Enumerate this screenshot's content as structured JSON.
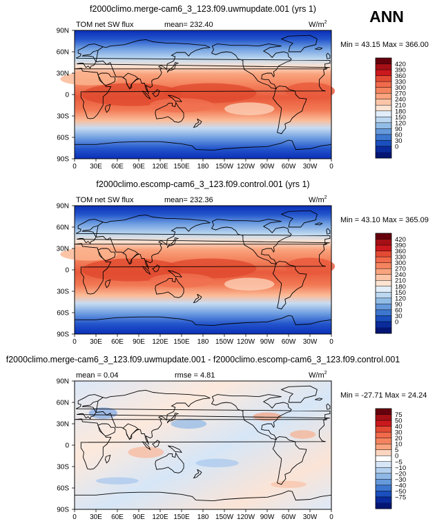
{
  "season": "ANN",
  "panels": [
    {
      "title": "f2000climo.merge-cam6_3_123.f09.uwmupdate.001 (yrs 1)",
      "left_label": "TOM  net  SW  flux",
      "stat1_label": "mean= ",
      "stat1_value": "232.40",
      "stat2_label": "",
      "stat2_value": "",
      "units": "W/m",
      "units_exp": "2",
      "minmax": "Min =  43.15 Max = 366.00",
      "palette": "full",
      "colorbar_labels": [
        "420",
        "390",
        "360",
        "330",
        "300",
        "270",
        "240",
        "210",
        "180",
        "150",
        "120",
        "90",
        "60",
        "30",
        "0"
      ],
      "colorbar_colors": [
        "#67000d",
        "#a50f15",
        "#cb181d",
        "#e34a33",
        "#f16a4b",
        "#f4845f",
        "#f9a47e",
        "#fcc5a8",
        "#fde3d2",
        "#e1edf9",
        "#bcd7f0",
        "#91bce6",
        "#6599db",
        "#3c76cf",
        "#1a4fbd",
        "#0a2b9b",
        "#041673"
      ],
      "tint": "#ffffff"
    },
    {
      "title": "f2000climo.escomp-cam6_3_123.f09.control.001 (yrs 1)",
      "left_label": "TOM  net  SW  flux",
      "stat1_label": "mean= ",
      "stat1_value": "232.36",
      "stat2_label": "",
      "stat2_value": "",
      "units": "W/m",
      "units_exp": "2",
      "minmax": "Min =  43.10 Max = 365.09",
      "palette": "full",
      "colorbar_labels": [
        "420",
        "390",
        "360",
        "330",
        "300",
        "270",
        "240",
        "210",
        "180",
        "150",
        "120",
        "90",
        "60",
        "30",
        "0"
      ],
      "colorbar_colors": [
        "#67000d",
        "#a50f15",
        "#cb181d",
        "#e34a33",
        "#f16a4b",
        "#f4845f",
        "#f9a47e",
        "#fcc5a8",
        "#fde3d2",
        "#e1edf9",
        "#bcd7f0",
        "#91bce6",
        "#6599db",
        "#3c76cf",
        "#1a4fbd",
        "#0a2b9b",
        "#041673"
      ],
      "tint": "#ffffff"
    },
    {
      "title": "f2000climo.merge-cam6_3_123.f09.uwmupdate.001 - f2000climo.escomp-cam6_3_123.f09.control.001",
      "left_label": "",
      "stat1_label": "mean = ",
      "stat1_value": "0.04",
      "stat2_label": "rmse = ",
      "stat2_value": "4.81",
      "units": "W/m",
      "units_exp": "2",
      "minmax": "Min = -27.71 Max =  24.24",
      "palette": "diff",
      "colorbar_labels": [
        "75",
        "50",
        "40",
        "30",
        "20",
        "10",
        "5",
        "0",
        "−5",
        "−10",
        "−20",
        "−30",
        "−40",
        "−50",
        "−75"
      ],
      "colorbar_colors": [
        "#67000d",
        "#a50f15",
        "#cb181d",
        "#e34a33",
        "#f16a4b",
        "#f4845f",
        "#f9a47e",
        "#fcd5c0",
        "#ffffff",
        "#d6e6f7",
        "#b5d0ef",
        "#8fb8e6",
        "#6599db",
        "#3c76cf",
        "#1a4fbd",
        "#0a2b9b",
        "#041673"
      ],
      "tint": "#eef5ff"
    }
  ],
  "chart_data": [
    {
      "type": "heatmap",
      "title": "f2000climo.merge-cam6_3_123.f09.uwmupdate.001 (yrs 1)",
      "variable": "TOM net SW flux",
      "units": "W/m2",
      "mean": 232.4,
      "min": 43.15,
      "max": 366.0,
      "x_ticks": [
        "0",
        "30E",
        "60E",
        "90E",
        "120E",
        "150E",
        "180",
        "150W",
        "120W",
        "90W",
        "60W",
        "30W",
        "0"
      ],
      "y_ticks": [
        "90N",
        "60N",
        "30N",
        "0",
        "30S",
        "60S",
        "90S"
      ],
      "levels": [
        0,
        30,
        60,
        90,
        120,
        150,
        180,
        210,
        240,
        270,
        300,
        330,
        360,
        390,
        420
      ]
    },
    {
      "type": "heatmap",
      "title": "f2000climo.escomp-cam6_3_123.f09.control.001 (yrs 1)",
      "variable": "TOM net SW flux",
      "units": "W/m2",
      "mean": 232.36,
      "min": 43.1,
      "max": 365.09,
      "x_ticks": [
        "0",
        "30E",
        "60E",
        "90E",
        "120E",
        "150E",
        "180",
        "150W",
        "120W",
        "90W",
        "60W",
        "30W",
        "0"
      ],
      "y_ticks": [
        "90N",
        "60N",
        "30N",
        "0",
        "30S",
        "60S",
        "90S"
      ],
      "levels": [
        0,
        30,
        60,
        90,
        120,
        150,
        180,
        210,
        240,
        270,
        300,
        330,
        360,
        390,
        420
      ]
    },
    {
      "type": "heatmap",
      "title": "f2000climo.merge-cam6_3_123.f09.uwmupdate.001 - f2000climo.escomp-cam6_3_123.f09.control.001",
      "units": "W/m2",
      "mean": 0.04,
      "rmse": 4.81,
      "min": -27.71,
      "max": 24.24,
      "x_ticks": [
        "0",
        "30E",
        "60E",
        "90E",
        "120E",
        "150E",
        "180",
        "150W",
        "120W",
        "90W",
        "60W",
        "30W",
        "0"
      ],
      "y_ticks": [
        "90N",
        "60N",
        "30N",
        "0",
        "30S",
        "60S",
        "90S"
      ],
      "levels": [
        -75,
        -50,
        -40,
        -30,
        -20,
        -10,
        -5,
        0,
        5,
        10,
        20,
        30,
        40,
        50,
        75
      ]
    }
  ]
}
